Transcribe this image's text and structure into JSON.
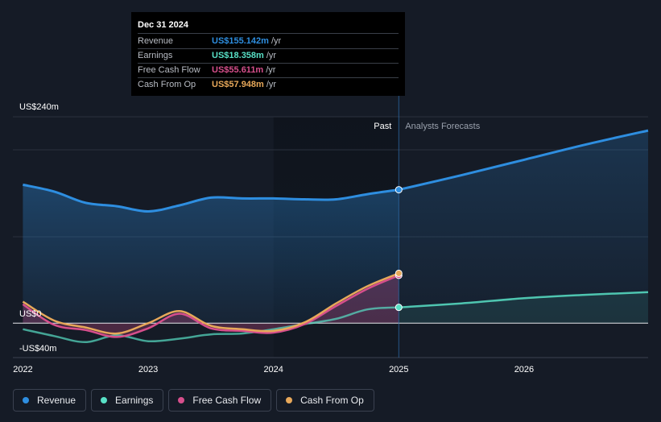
{
  "chart_data": {
    "type": "line",
    "ylim": [
      -40,
      240
    ],
    "x_range": [
      2021.92,
      2026.99
    ],
    "y_ticks": [
      {
        "value": 240,
        "label": "US$240m"
      },
      {
        "value": 0,
        "label": "US$0"
      },
      {
        "value": -40,
        "label": "-US$40m"
      }
    ],
    "x_ticks": [
      {
        "value": 2022,
        "label": "2022"
      },
      {
        "value": 2023,
        "label": "2023"
      },
      {
        "value": 2024,
        "label": "2024"
      },
      {
        "value": 2025,
        "label": "2025"
      },
      {
        "value": 2026,
        "label": "2026"
      }
    ],
    "past_label": "Past",
    "forecast_label": "Analysts Forecasts",
    "divider_x": 2025.0,
    "highlight_start_x": 2024.0,
    "series": [
      {
        "name": "Revenue",
        "color": "#2e8ee0",
        "x": [
          2022.0,
          2022.25,
          2022.5,
          2022.75,
          2023.0,
          2023.25,
          2023.5,
          2023.75,
          2024.0,
          2024.25,
          2024.5,
          2024.75,
          2025.0
        ],
        "values": [
          161,
          153,
          140,
          136,
          130,
          137,
          146,
          145,
          145,
          144,
          144,
          150,
          155.142
        ],
        "forecast_x": [
          2025.0,
          2025.5,
          2026.0,
          2026.5,
          2026.99
        ],
        "forecast_values": [
          155.142,
          172,
          190,
          208,
          224
        ]
      },
      {
        "name": "Earnings",
        "color": "#58e0c6",
        "x": [
          2022.0,
          2022.25,
          2022.5,
          2022.75,
          2023.0,
          2023.25,
          2023.5,
          2023.75,
          2024.0,
          2024.25,
          2024.5,
          2024.75,
          2025.0
        ],
        "values": [
          -7,
          -15,
          -22,
          -14,
          -21,
          -18,
          -13,
          -12,
          -7,
          -1,
          5,
          16,
          18.358
        ],
        "forecast_x": [
          2025.0,
          2025.5,
          2026.0,
          2026.5,
          2026.99
        ],
        "forecast_values": [
          18.358,
          23,
          29,
          33,
          36
        ]
      },
      {
        "name": "Free Cash Flow",
        "color": "#d74f8c",
        "x": [
          2022.0,
          2022.25,
          2022.5,
          2022.75,
          2023.0,
          2023.25,
          2023.5,
          2023.75,
          2024.0,
          2024.25,
          2024.5,
          2024.75,
          2025.0
        ],
        "values": [
          22,
          -2,
          -8,
          -16,
          -6,
          11,
          -6,
          -9,
          -11,
          -1,
          20,
          40,
          55.611
        ]
      },
      {
        "name": "Cash From Op",
        "color": "#e7a85a",
        "x": [
          2022.0,
          2022.25,
          2022.5,
          2022.75,
          2023.0,
          2023.25,
          2023.5,
          2023.75,
          2024.0,
          2024.25,
          2024.5,
          2024.75,
          2025.0
        ],
        "values": [
          25,
          3,
          -5,
          -12,
          0,
          14,
          -3,
          -7,
          -9,
          1,
          23,
          43,
          57.948
        ]
      }
    ]
  },
  "tooltip": {
    "date": "Dec 31 2024",
    "rows": [
      {
        "label": "Revenue",
        "value": "US$155.142m",
        "unit": "/yr",
        "color": "#2e8ee0"
      },
      {
        "label": "Earnings",
        "value": "US$18.358m",
        "unit": "/yr",
        "color": "#58e0c6"
      },
      {
        "label": "Free Cash Flow",
        "value": "US$55.611m",
        "unit": "/yr",
        "color": "#d74f8c"
      },
      {
        "label": "Cash From Op",
        "value": "US$57.948m",
        "unit": "/yr",
        "color": "#e7a85a"
      }
    ]
  },
  "legend": [
    {
      "label": "Revenue",
      "color": "#2e8ee0"
    },
    {
      "label": "Earnings",
      "color": "#58e0c6"
    },
    {
      "label": "Free Cash Flow",
      "color": "#d74f8c"
    },
    {
      "label": "Cash From Op",
      "color": "#e7a85a"
    }
  ]
}
